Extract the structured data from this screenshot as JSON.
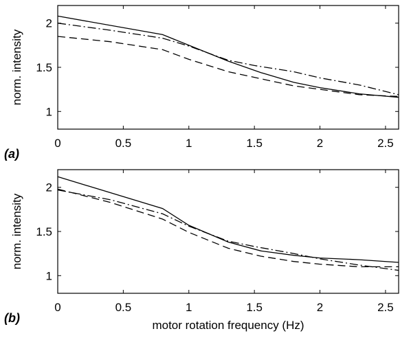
{
  "chart_data": [
    {
      "type": "line",
      "panel_label": "(a)",
      "xlabel": "",
      "ylabel": "norm. intensity",
      "xlim": [
        0,
        2.6
      ],
      "ylim": [
        0.8,
        2.2
      ],
      "xticks": [
        0,
        0.5,
        1,
        1.5,
        2,
        2.5
      ],
      "xtick_labels": [
        "0",
        "0.5",
        "1",
        "1.5",
        "2",
        "2.5"
      ],
      "yticks": [
        1,
        1.5,
        2
      ],
      "ytick_labels": [
        "1",
        "1.5",
        "2"
      ],
      "grid": false,
      "series": [
        {
          "line_style": "solid",
          "x": [
            0,
            0.8,
            1.0,
            1.3,
            1.55,
            1.8,
            2.0,
            2.3,
            2.6
          ],
          "y": [
            2.08,
            1.87,
            1.75,
            1.57,
            1.44,
            1.33,
            1.27,
            1.2,
            1.16
          ]
        },
        {
          "line_style": "dash-dot",
          "x": [
            0,
            0.4,
            0.8,
            1.0,
            1.3,
            1.5,
            1.8,
            2.0,
            2.3,
            2.6
          ],
          "y": [
            2.0,
            1.92,
            1.83,
            1.74,
            1.58,
            1.52,
            1.45,
            1.38,
            1.3,
            1.19
          ]
        },
        {
          "line_style": "dashed",
          "x": [
            0,
            0.4,
            0.8,
            1.0,
            1.3,
            1.55,
            1.8,
            2.0,
            2.3,
            2.6
          ],
          "y": [
            1.85,
            1.79,
            1.7,
            1.59,
            1.45,
            1.37,
            1.29,
            1.25,
            1.19,
            1.17
          ]
        }
      ]
    },
    {
      "type": "line",
      "panel_label": "(b)",
      "xlabel": "motor rotation frequency (Hz)",
      "ylabel": "norm. intensity",
      "xlim": [
        0,
        2.6
      ],
      "ylim": [
        0.8,
        2.2
      ],
      "xticks": [
        0,
        0.5,
        1,
        1.5,
        2,
        2.5
      ],
      "xtick_labels": [
        "0",
        "0.5",
        "1",
        "1.5",
        "2",
        "2.5"
      ],
      "yticks": [
        1,
        1.5,
        2
      ],
      "ytick_labels": [
        "1",
        "1.5",
        "2"
      ],
      "grid": false,
      "series": [
        {
          "line_style": "solid",
          "x": [
            0,
            0.8,
            1.0,
            1.3,
            1.55,
            1.8,
            2.0,
            2.3,
            2.6
          ],
          "y": [
            2.12,
            1.76,
            1.57,
            1.38,
            1.28,
            1.23,
            1.2,
            1.18,
            1.15
          ]
        },
        {
          "line_style": "dash-dot",
          "x": [
            0,
            0.4,
            0.8,
            1.0,
            1.3,
            1.5,
            1.8,
            2.0,
            2.3,
            2.6
          ],
          "y": [
            1.97,
            1.86,
            1.7,
            1.56,
            1.39,
            1.33,
            1.25,
            1.19,
            1.12,
            1.06
          ]
        },
        {
          "line_style": "dashed",
          "x": [
            0,
            0.4,
            0.8,
            1.0,
            1.3,
            1.55,
            1.8,
            2.0,
            2.3,
            2.6
          ],
          "y": [
            1.98,
            1.83,
            1.64,
            1.49,
            1.31,
            1.22,
            1.16,
            1.13,
            1.1,
            1.1
          ]
        }
      ]
    }
  ]
}
